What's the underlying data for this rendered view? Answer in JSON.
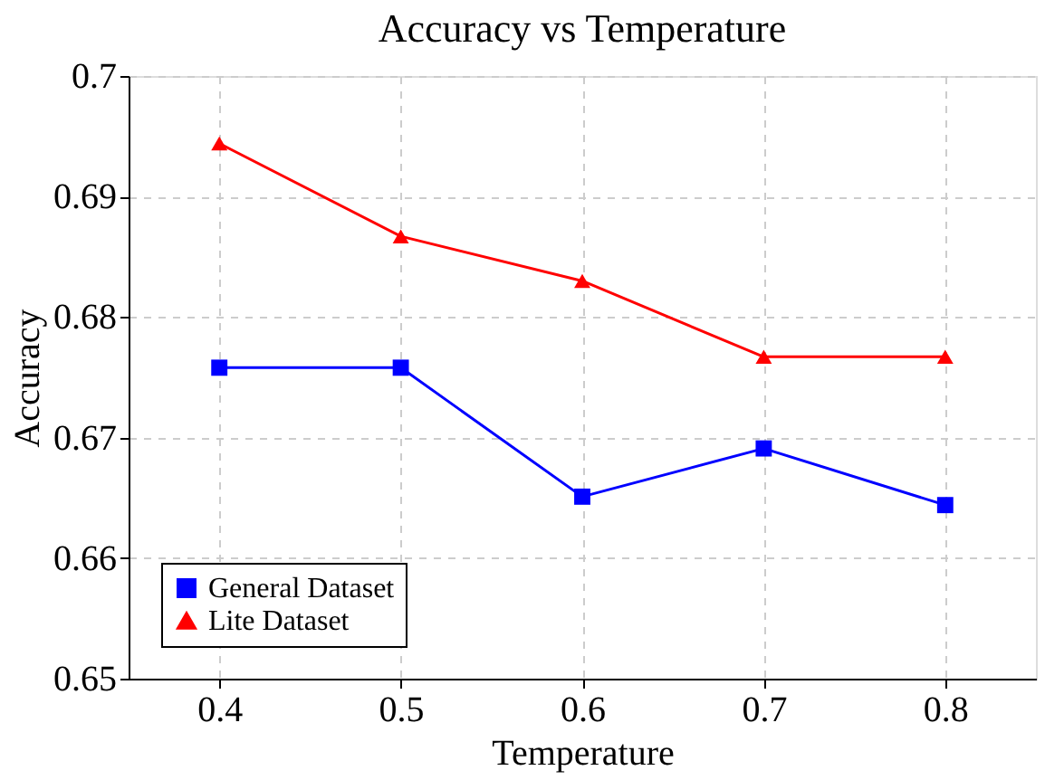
{
  "chart_data": {
    "type": "line",
    "title": "Accuracy vs Temperature",
    "xlabel": "Temperature",
    "ylabel": "Accuracy",
    "x": [
      0.4,
      0.5,
      0.6,
      0.7,
      0.8
    ],
    "series": [
      {
        "name": "General Dataset",
        "color": "#0000ff",
        "marker": "square",
        "values": [
          0.6758,
          0.6758,
          0.6651,
          0.6691,
          0.6644
        ]
      },
      {
        "name": "Lite Dataset",
        "color": "#ff0000",
        "marker": "triangle",
        "values": [
          0.6944,
          0.6867,
          0.683,
          0.6767,
          0.6767
        ]
      }
    ],
    "xlim": [
      0.35,
      0.85
    ],
    "xticks": [
      0.4,
      0.5,
      0.6,
      0.7,
      0.8
    ],
    "ylim": [
      0.65,
      0.7
    ],
    "yticks": [
      0.65,
      0.66,
      0.67,
      0.68,
      0.69,
      0.7
    ],
    "grid": true,
    "line_style": "solid",
    "legend": "bottom left"
  }
}
